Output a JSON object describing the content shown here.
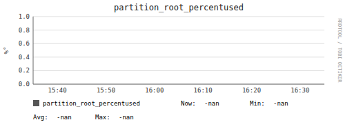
{
  "chart_data": {
    "type": "line",
    "title": "partition_root_percentused",
    "y_label": "%°",
    "categories": [
      "15:40",
      "15:50",
      "16:00",
      "16:10",
      "16:20",
      "16:30"
    ],
    "series": [
      {
        "name": "partition_root_percentused",
        "color": "#555555",
        "values": [
          null,
          null,
          null,
          null,
          null,
          null
        ]
      }
    ],
    "ylim": [
      0.0,
      1.0
    ],
    "yticks": [
      {
        "value": 0.0,
        "label": "0.0"
      },
      {
        "value": 0.2,
        "label": "0.2"
      },
      {
        "value": 0.4,
        "label": "0.4"
      },
      {
        "value": 0.6,
        "label": "0.6"
      },
      {
        "value": 0.8,
        "label": "0.8"
      },
      {
        "value": 1.0,
        "label": "1.0"
      }
    ],
    "grid": true,
    "annotations": [
      "RRDTOOL / TOBI OETIKER",
      "Now:",
      "-nan",
      "Min:",
      "-nan",
      "Avg:",
      "-nan",
      "Max:",
      "-nan"
    ]
  }
}
